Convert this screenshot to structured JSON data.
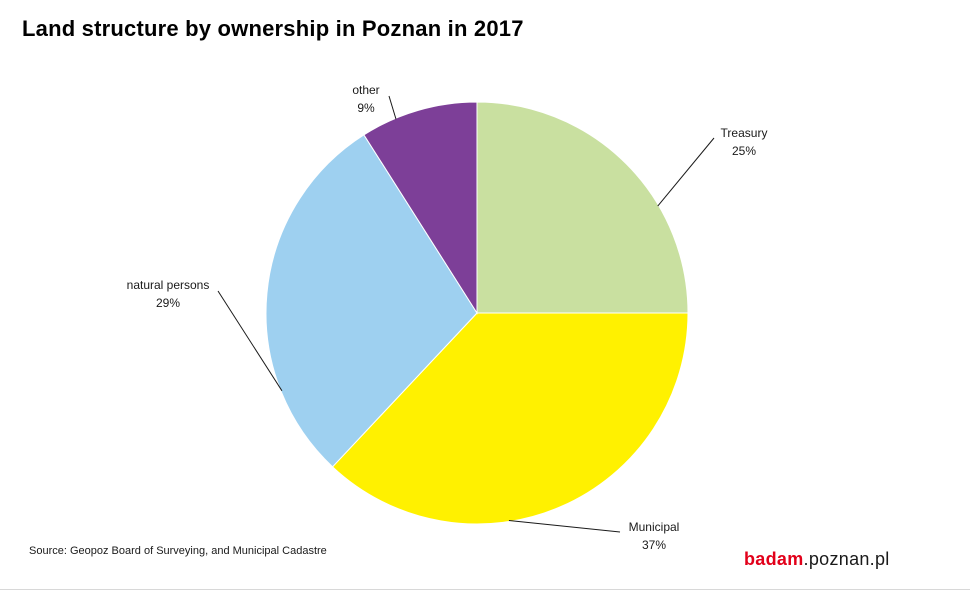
{
  "chart_data": {
    "type": "pie",
    "title": "Land structure by ownership in Poznan in 2017",
    "slices": [
      {
        "label": "Treasury",
        "value": 25,
        "value_label": "25%",
        "color": "#c9e0a0"
      },
      {
        "label": "Municipal",
        "value": 37,
        "value_label": "37%",
        "color": "#fff100"
      },
      {
        "label": "natural persons",
        "value": 29,
        "value_label": "29%",
        "color": "#9ed0f0"
      },
      {
        "label": "other",
        "value": 9,
        "value_label": "9%",
        "color": "#7d3f98"
      }
    ],
    "start_angle": "12 o'clock",
    "direction": "clockwise",
    "legend": "none"
  },
  "footer": {
    "source": "Source: Geopoz Board of Surveying, and Municipal Cadastre",
    "logo_part1": "badam",
    "logo_part2": ".poznan.pl"
  }
}
